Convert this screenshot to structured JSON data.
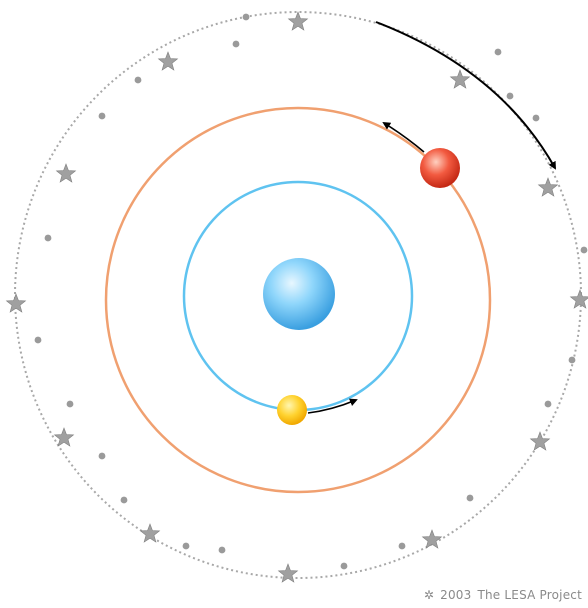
{
  "credit": {
    "symbol": "✲",
    "year": "2003",
    "owner": "The LESA Project"
  },
  "colors": {
    "center_body": "#6fc6f3",
    "inner_orbit": "#5fc3f0",
    "middle_orbit": "#f0a070",
    "outer_orbit": "#a0a0a0",
    "inner_planet": "#ffd23a",
    "outer_planet": "#f04a35",
    "stars": "#9a9a9a",
    "arrows": "#000000"
  },
  "icons": {
    "center": "central-body-icon",
    "inner_planet": "yellow-planet-icon",
    "outer_planet": "red-planet-icon",
    "stars": "background-star-icon",
    "arrow": "motion-arrow-icon"
  }
}
